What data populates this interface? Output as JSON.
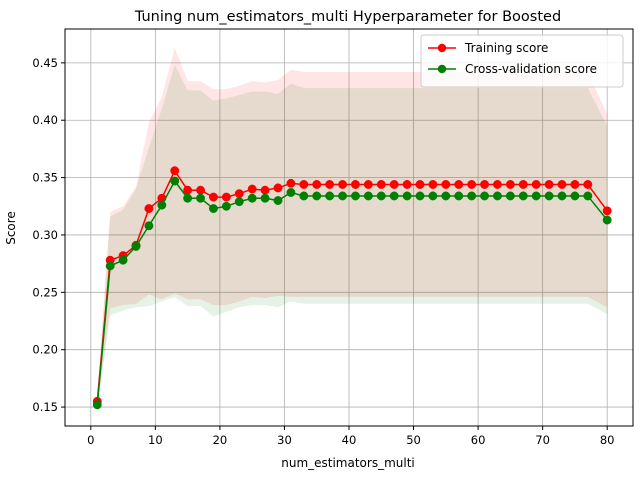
{
  "chart_data": {
    "type": "line",
    "title": "Tuning num_estimators_multi Hyperparameter for Boosted",
    "xlabel": "num_estimators_multi",
    "ylabel": "Score",
    "xlim": [
      -4.0,
      84.0
    ],
    "ylim": [
      0.1335,
      0.4795
    ],
    "xticks": [
      0,
      10,
      20,
      30,
      40,
      50,
      60,
      70,
      80
    ],
    "yticks": [
      0.15,
      0.2,
      0.25,
      0.3,
      0.35,
      0.4,
      0.45
    ],
    "xtick_labels": [
      "0",
      "10",
      "20",
      "30",
      "40",
      "50",
      "60",
      "70",
      "80"
    ],
    "ytick_labels": [
      "0.15",
      "0.20",
      "0.25",
      "0.30",
      "0.35",
      "0.40",
      "0.45"
    ],
    "grid": true,
    "legend_position": "top-right",
    "x": [
      1,
      3,
      5,
      7,
      9,
      11,
      13,
      15,
      17,
      19,
      21,
      23,
      25,
      27,
      29,
      31,
      33,
      35,
      37,
      39,
      41,
      43,
      45,
      47,
      49,
      51,
      53,
      55,
      57,
      59,
      61,
      63,
      65,
      67,
      69,
      71,
      73,
      75,
      77,
      80
    ],
    "series": [
      {
        "name": "Training score",
        "color": "#ff0000",
        "band_color": "#ff0000",
        "marker": "circle",
        "values": [
          0.155,
          0.278,
          0.282,
          0.291,
          0.323,
          0.332,
          0.356,
          0.339,
          0.339,
          0.333,
          0.333,
          0.336,
          0.34,
          0.339,
          0.341,
          0.345,
          0.344,
          0.344,
          0.344,
          0.344,
          0.344,
          0.344,
          0.344,
          0.344,
          0.344,
          0.344,
          0.344,
          0.344,
          0.344,
          0.344,
          0.344,
          0.344,
          0.344,
          0.344,
          0.344,
          0.344,
          0.344,
          0.344,
          0.344,
          0.321
        ],
        "upper": [
          0.16,
          0.32,
          0.325,
          0.342,
          0.398,
          0.42,
          0.463,
          0.434,
          0.434,
          0.427,
          0.427,
          0.43,
          0.434,
          0.433,
          0.435,
          0.444,
          0.442,
          0.442,
          0.442,
          0.442,
          0.442,
          0.442,
          0.442,
          0.442,
          0.442,
          0.442,
          0.442,
          0.442,
          0.442,
          0.442,
          0.442,
          0.442,
          0.442,
          0.442,
          0.442,
          0.442,
          0.442,
          0.442,
          0.442,
          0.405
        ],
        "lower": [
          0.15,
          0.236,
          0.239,
          0.24,
          0.248,
          0.244,
          0.249,
          0.244,
          0.244,
          0.239,
          0.239,
          0.242,
          0.246,
          0.245,
          0.247,
          0.246,
          0.246,
          0.246,
          0.246,
          0.246,
          0.246,
          0.246,
          0.246,
          0.246,
          0.246,
          0.246,
          0.246,
          0.246,
          0.246,
          0.246,
          0.246,
          0.246,
          0.246,
          0.246,
          0.246,
          0.246,
          0.246,
          0.246,
          0.246,
          0.237
        ]
      },
      {
        "name": "Cross-validation score",
        "color": "#008000",
        "band_color": "#008000",
        "marker": "circle",
        "values": [
          0.152,
          0.273,
          0.278,
          0.29,
          0.308,
          0.326,
          0.347,
          0.332,
          0.332,
          0.323,
          0.325,
          0.329,
          0.332,
          0.332,
          0.33,
          0.337,
          0.334,
          0.334,
          0.334,
          0.334,
          0.334,
          0.334,
          0.334,
          0.334,
          0.334,
          0.334,
          0.334,
          0.334,
          0.334,
          0.334,
          0.334,
          0.334,
          0.334,
          0.334,
          0.334,
          0.334,
          0.334,
          0.334,
          0.334,
          0.313
        ],
        "upper": [
          0.156,
          0.316,
          0.322,
          0.34,
          0.376,
          0.41,
          0.448,
          0.426,
          0.426,
          0.417,
          0.419,
          0.422,
          0.425,
          0.425,
          0.423,
          0.432,
          0.428,
          0.428,
          0.428,
          0.428,
          0.428,
          0.428,
          0.428,
          0.428,
          0.428,
          0.428,
          0.428,
          0.428,
          0.428,
          0.428,
          0.428,
          0.428,
          0.428,
          0.428,
          0.428,
          0.428,
          0.428,
          0.428,
          0.428,
          0.395
        ],
        "lower": [
          0.148,
          0.23,
          0.234,
          0.237,
          0.238,
          0.242,
          0.246,
          0.238,
          0.238,
          0.229,
          0.233,
          0.237,
          0.239,
          0.239,
          0.237,
          0.242,
          0.24,
          0.24,
          0.24,
          0.24,
          0.24,
          0.24,
          0.24,
          0.24,
          0.24,
          0.24,
          0.24,
          0.24,
          0.24,
          0.24,
          0.24,
          0.24,
          0.24,
          0.24,
          0.24,
          0.24,
          0.24,
          0.24,
          0.24,
          0.231
        ]
      }
    ]
  }
}
